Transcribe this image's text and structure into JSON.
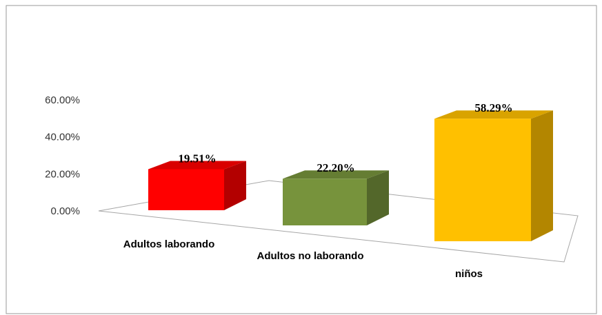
{
  "chart_data": {
    "type": "bar3d",
    "categories": [
      "Adultos laborando",
      "Adultos no laborando",
      "niños"
    ],
    "values": [
      19.51,
      22.2,
      58.29
    ],
    "value_labels": [
      "19.51%",
      "22.20%",
      "58.29%"
    ],
    "colors": [
      "#ff0000",
      "#77933c",
      "#ffc000"
    ],
    "ylim": [
      0,
      60
    ],
    "yticks": [
      {
        "value": 0,
        "label": "0.00%"
      },
      {
        "value": 20,
        "label": "20.00%"
      },
      {
        "value": 40,
        "label": "40.00%"
      },
      {
        "value": 60,
        "label": "60.00%"
      }
    ]
  }
}
